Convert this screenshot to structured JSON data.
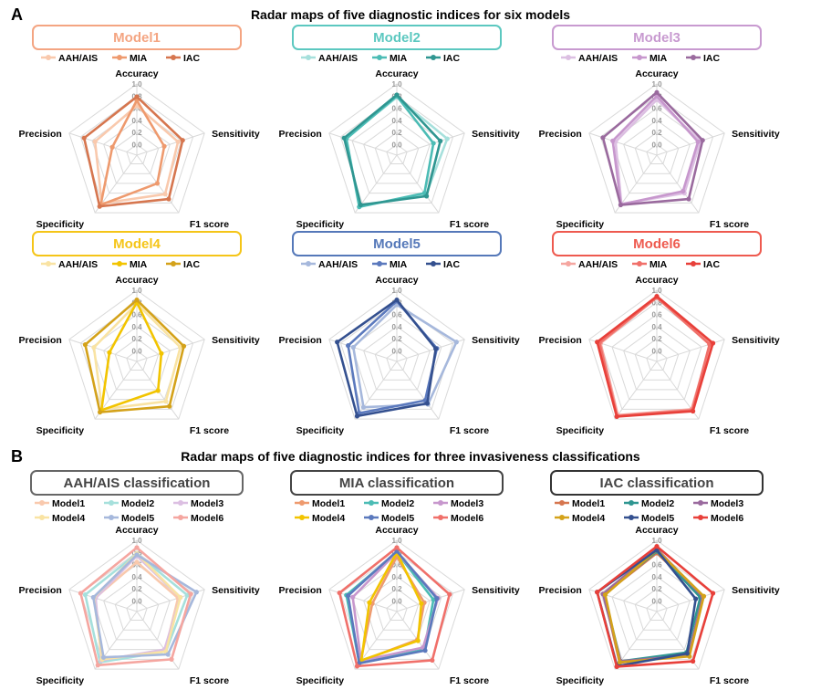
{
  "section_a": {
    "letter": "A",
    "title": "Radar maps of five diagnostic indices for six models"
  },
  "section_b": {
    "letter": "B",
    "title": "Radar maps of five diagnostic indices for three invasiveness classifications"
  },
  "axes": [
    "Accuracy",
    "Sensitivity",
    "F1 score",
    "Specificity",
    "Precision"
  ],
  "ticks": [
    "0.0",
    "0.2",
    "0.4",
    "0.6",
    "0.8",
    "1.0"
  ],
  "chart_data": [
    {
      "type": "radar",
      "title": "Model1",
      "frame_color": "#f4a582",
      "series": [
        {
          "name": "AAH/AIS",
          "color": "#f9c9ad",
          "values": [
            0.64,
            0.54,
            0.62,
            0.81,
            0.55
          ]
        },
        {
          "name": "MIA",
          "color": "#ee9a6e",
          "values": [
            0.73,
            0.3,
            0.4,
            0.84,
            0.25
          ]
        },
        {
          "name": "IAC",
          "color": "#d6764f",
          "values": [
            0.79,
            0.62,
            0.72,
            0.87,
            0.74
          ]
        }
      ]
    },
    {
      "type": "radar",
      "title": "Model2",
      "frame_color": "#5cc8c0",
      "series": [
        {
          "name": "AAH/AIS",
          "color": "#a6e0dc",
          "values": [
            0.78,
            0.7,
            0.64,
            0.86,
            0.72
          ]
        },
        {
          "name": "MIA",
          "color": "#4cbcb5",
          "values": [
            0.8,
            0.46,
            0.6,
            0.88,
            0.7
          ]
        },
        {
          "name": "IAC",
          "color": "#2f9691",
          "values": [
            0.82,
            0.58,
            0.66,
            0.84,
            0.74
          ]
        }
      ]
    },
    {
      "type": "radar",
      "title": "Model3",
      "frame_color": "#c89ad0",
      "series": [
        {
          "name": "AAH/AIS",
          "color": "#dcbfe2",
          "values": [
            0.74,
            0.58,
            0.6,
            0.82,
            0.54
          ]
        },
        {
          "name": "MIA",
          "color": "#c797cd",
          "values": [
            0.8,
            0.54,
            0.56,
            0.83,
            0.59
          ]
        },
        {
          "name": "IAC",
          "color": "#9a6a9e",
          "values": [
            0.86,
            0.62,
            0.72,
            0.84,
            0.76
          ]
        }
      ]
    },
    {
      "type": "radar",
      "title": "Model4",
      "frame_color": "#f5c518",
      "series": [
        {
          "name": "AAH/AIS",
          "color": "#f9e3a3",
          "values": [
            0.78,
            0.58,
            0.64,
            0.8,
            0.57
          ]
        },
        {
          "name": "MIA",
          "color": "#f2c400",
          "values": [
            0.8,
            0.25,
            0.42,
            0.82,
            0.3
          ]
        },
        {
          "name": "IAC",
          "color": "#d4a21a",
          "values": [
            0.84,
            0.64,
            0.74,
            0.86,
            0.72
          ]
        }
      ]
    },
    {
      "type": "radar",
      "title": "Model5",
      "frame_color": "#5578b9",
      "series": [
        {
          "name": "AAH/AIS",
          "color": "#a6b8dc",
          "values": [
            0.76,
            0.86,
            0.7,
            0.76,
            0.58
          ]
        },
        {
          "name": "MIA",
          "color": "#5b79bd",
          "values": [
            0.82,
            0.52,
            0.62,
            0.88,
            0.67
          ]
        },
        {
          "name": "IAC",
          "color": "#34508f",
          "values": [
            0.84,
            0.5,
            0.68,
            0.94,
            0.86
          ]
        }
      ]
    },
    {
      "type": "radar",
      "title": "Model6",
      "frame_color": "#ee5a4f",
      "series": [
        {
          "name": "AAH/AIS",
          "color": "#f5a6a0",
          "values": [
            0.88,
            0.76,
            0.8,
            0.92,
            0.8
          ]
        },
        {
          "name": "MIA",
          "color": "#f0706a",
          "values": [
            0.88,
            0.74,
            0.82,
            0.94,
            0.82
          ]
        },
        {
          "name": "IAC",
          "color": "#e8403a",
          "values": [
            0.9,
            0.8,
            0.84,
            0.95,
            0.86
          ]
        }
      ]
    },
    {
      "type": "radar",
      "title": "AAH/AIS classification",
      "frame_color": "#666666",
      "series": [
        {
          "name": "Model1",
          "color": "#f9c9ad",
          "values": [
            0.64,
            0.54,
            0.62,
            0.81,
            0.55
          ]
        },
        {
          "name": "Model2",
          "color": "#a6e0dc",
          "values": [
            0.78,
            0.7,
            0.64,
            0.86,
            0.72
          ]
        },
        {
          "name": "Model3",
          "color": "#dcbfe2",
          "values": [
            0.74,
            0.58,
            0.6,
            0.82,
            0.54
          ]
        },
        {
          "name": "Model4",
          "color": "#f9e3a3",
          "values": [
            0.78,
            0.58,
            0.64,
            0.8,
            0.57
          ]
        },
        {
          "name": "Model5",
          "color": "#a6b8dc",
          "values": [
            0.76,
            0.86,
            0.7,
            0.76,
            0.58
          ]
        },
        {
          "name": "Model6",
          "color": "#f5a6a0",
          "values": [
            0.88,
            0.76,
            0.8,
            0.92,
            0.8
          ]
        }
      ]
    },
    {
      "type": "radar",
      "title": "MIA classification",
      "frame_color": "#444444",
      "series": [
        {
          "name": "Model1",
          "color": "#ee9a6e",
          "values": [
            0.73,
            0.3,
            0.4,
            0.84,
            0.25
          ]
        },
        {
          "name": "Model2",
          "color": "#4cbcb5",
          "values": [
            0.8,
            0.46,
            0.6,
            0.88,
            0.7
          ]
        },
        {
          "name": "Model3",
          "color": "#c797cd",
          "values": [
            0.8,
            0.54,
            0.56,
            0.83,
            0.59
          ]
        },
        {
          "name": "Model4",
          "color": "#f2c400",
          "values": [
            0.8,
            0.25,
            0.42,
            0.82,
            0.3
          ]
        },
        {
          "name": "Model5",
          "color": "#5b79bd",
          "values": [
            0.82,
            0.52,
            0.62,
            0.88,
            0.67
          ]
        },
        {
          "name": "Model6",
          "color": "#f0706a",
          "values": [
            0.88,
            0.74,
            0.82,
            0.94,
            0.82
          ]
        }
      ]
    },
    {
      "type": "radar",
      "title": "IAC classification",
      "frame_color": "#333333",
      "series": [
        {
          "name": "Model1",
          "color": "#d6764f",
          "values": [
            0.79,
            0.62,
            0.72,
            0.87,
            0.74
          ]
        },
        {
          "name": "Model2",
          "color": "#2f9691",
          "values": [
            0.82,
            0.58,
            0.66,
            0.84,
            0.74
          ]
        },
        {
          "name": "Model3",
          "color": "#9a6a9e",
          "values": [
            0.86,
            0.62,
            0.72,
            0.84,
            0.76
          ]
        },
        {
          "name": "Model4",
          "color": "#d4a21a",
          "values": [
            0.84,
            0.64,
            0.74,
            0.86,
            0.72
          ]
        },
        {
          "name": "Model5",
          "color": "#34508f",
          "values": [
            0.84,
            0.5,
            0.68,
            0.94,
            0.86
          ]
        },
        {
          "name": "Model6",
          "color": "#e8403a",
          "values": [
            0.9,
            0.8,
            0.84,
            0.95,
            0.86
          ]
        }
      ]
    }
  ]
}
